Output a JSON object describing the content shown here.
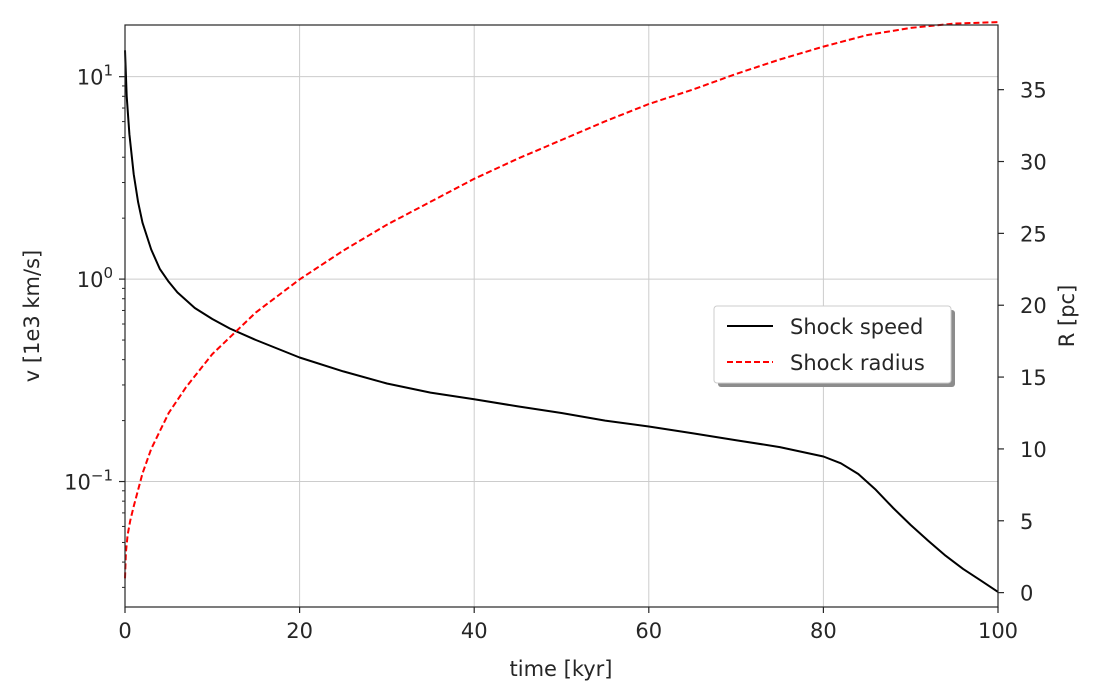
{
  "chart_data": {
    "type": "line",
    "title": "",
    "xlabel": "time [kyr]",
    "ylabel_left": "v [1e3 km/s]",
    "ylabel_right": "R [pc]",
    "xlim": [
      0,
      100
    ],
    "ylim_left": [
      0.024,
      18
    ],
    "yscale_left": "log",
    "ylim_right": [
      -1,
      39.5
    ],
    "grid": true,
    "legend_placement": "center-right",
    "x_ticks": [
      {
        "value": 0,
        "label": "0"
      },
      {
        "value": 20,
        "label": "20"
      },
      {
        "value": 40,
        "label": "40"
      },
      {
        "value": 60,
        "label": "60"
      },
      {
        "value": 80,
        "label": "80"
      },
      {
        "value": 100,
        "label": "100"
      }
    ],
    "y_ticks_left": [
      {
        "value": 10,
        "base": "10",
        "exp": "1"
      },
      {
        "value": 1,
        "base": "10",
        "exp": "0"
      },
      {
        "value": 0.1,
        "base": "10",
        "exp": "−1"
      }
    ],
    "y_ticks_right": [
      {
        "value": 0,
        "label": "0"
      },
      {
        "value": 5,
        "label": "5"
      },
      {
        "value": 10,
        "label": "10"
      },
      {
        "value": 15,
        "label": "15"
      },
      {
        "value": 20,
        "label": "20"
      },
      {
        "value": 25,
        "label": "25"
      },
      {
        "value": 30,
        "label": "30"
      },
      {
        "value": 35,
        "label": "35"
      }
    ],
    "series": [
      {
        "name": "Shock speed",
        "axis": "left",
        "color": "#000000",
        "style": "solid",
        "x": [
          0,
          0.2,
          0.5,
          1,
          1.5,
          2,
          3,
          4,
          5,
          6,
          8,
          10,
          12,
          15,
          20,
          25,
          30,
          35,
          40,
          45,
          50,
          55,
          60,
          65,
          70,
          75,
          80,
          82,
          84,
          86,
          88,
          90,
          92,
          94,
          96,
          98,
          100
        ],
        "y": [
          13.5,
          8.0,
          5.2,
          3.3,
          2.4,
          1.9,
          1.4,
          1.12,
          0.97,
          0.86,
          0.72,
          0.635,
          0.57,
          0.5,
          0.41,
          0.35,
          0.305,
          0.275,
          0.255,
          0.235,
          0.218,
          0.2,
          0.187,
          0.173,
          0.16,
          0.148,
          0.133,
          0.123,
          0.109,
          0.091,
          0.074,
          0.061,
          0.051,
          0.043,
          0.037,
          0.0325,
          0.0285
        ]
      },
      {
        "name": "Shock radius",
        "axis": "right",
        "color": "#ff0000",
        "style": "dashed",
        "x": [
          0,
          0.1,
          0.3,
          0.6,
          1,
          2,
          3,
          5,
          7,
          10,
          15,
          20,
          25,
          30,
          35,
          40,
          45,
          50,
          55,
          60,
          65,
          70,
          75,
          80,
          85,
          90,
          95,
          100
        ],
        "y": [
          1.0,
          2.8,
          4.0,
          5.0,
          6.0,
          8.3,
          10.0,
          12.5,
          14.3,
          16.6,
          19.5,
          21.8,
          23.8,
          25.6,
          27.2,
          28.8,
          30.2,
          31.5,
          32.8,
          34.0,
          35.0,
          36.1,
          37.1,
          38.0,
          38.8,
          39.3,
          39.6,
          39.7
        ]
      }
    ]
  }
}
